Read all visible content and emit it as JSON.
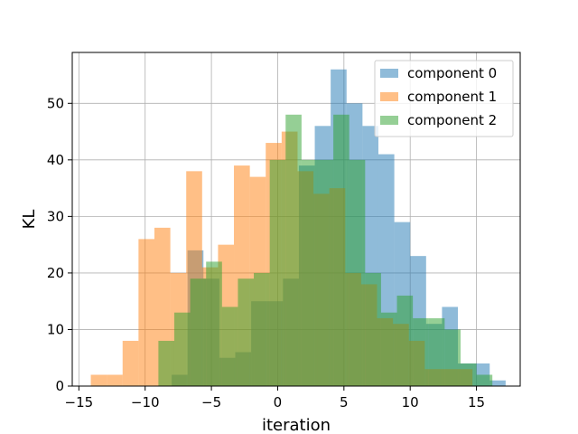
{
  "chart_data": {
    "type": "bar",
    "xlabel": "iteration",
    "ylabel": "KL",
    "xlim": [
      -15.5,
      18.3
    ],
    "ylim": [
      0,
      59
    ],
    "xticks": [
      -15,
      -10,
      -5,
      0,
      5,
      10,
      15
    ],
    "yticks": [
      0,
      10,
      20,
      30,
      40,
      50
    ],
    "grid": true,
    "legend_position": "top-right",
    "series": [
      {
        "name": "component 0",
        "color": "#1f77b4",
        "alpha": 0.5,
        "bin_start": -9.2,
        "bin_width": 1.2,
        "counts": [
          0,
          2,
          24,
          19,
          5,
          6,
          15,
          15,
          19,
          39,
          46,
          56,
          50,
          46,
          41,
          29,
          23,
          11,
          14,
          4,
          4,
          1
        ]
      },
      {
        "name": "component 1",
        "color": "#ff7f0e",
        "alpha": 0.5,
        "bin_start": -14.1,
        "bin_width": 1.2,
        "counts": [
          2,
          2,
          8,
          26,
          28,
          20,
          38,
          21,
          25,
          39,
          37,
          43,
          45,
          38,
          34,
          35,
          20,
          18,
          12,
          11,
          8,
          3,
          3,
          3
        ]
      },
      {
        "name": "component 2",
        "color": "#2ca02c",
        "alpha": 0.5,
        "bin_start": -9.0,
        "bin_width": 1.2,
        "counts": [
          8,
          13,
          19,
          22,
          14,
          19,
          20,
          40,
          48,
          40,
          40,
          48,
          40,
          20,
          13,
          16,
          12,
          12,
          10,
          4,
          2
        ]
      }
    ]
  }
}
